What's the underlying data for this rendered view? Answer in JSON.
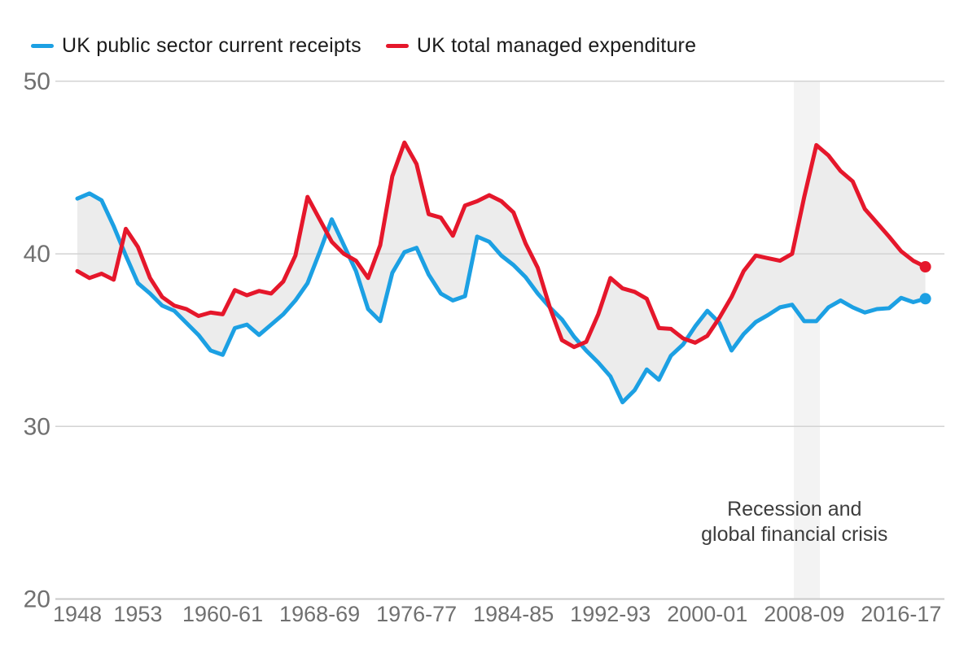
{
  "legend": {
    "items": [
      {
        "label": "UK public sector current receipts",
        "color": "#1ca0e3"
      },
      {
        "label": "UK total managed expenditure",
        "color": "#e5172b"
      }
    ]
  },
  "chart_data": {
    "type": "line",
    "title": "",
    "xlabel": "",
    "ylabel": "",
    "ylim": [
      20,
      50
    ],
    "y_gridlines": [
      20,
      30,
      40,
      50
    ],
    "y_tick_labels": [
      "20",
      "30",
      "40",
      "50"
    ],
    "grid": "horizontal",
    "legend_position": "top-left",
    "categories": [
      "1948",
      "1949",
      "1950",
      "1951",
      "1952",
      "1953",
      "1954",
      "1955",
      "1956-57",
      "1957-58",
      "1958-59",
      "1959-60",
      "1960-61",
      "1961-62",
      "1962-63",
      "1963-64",
      "1964-65",
      "1965-66",
      "1966-67",
      "1967-68",
      "1968-69",
      "1969-70",
      "1970-71",
      "1971-72",
      "1972-73",
      "1973-74",
      "1974-75",
      "1975-76",
      "1976-77",
      "1977-78",
      "1978-79",
      "1979-80",
      "1980-81",
      "1981-82",
      "1982-83",
      "1983-84",
      "1984-85",
      "1985-86",
      "1986-87",
      "1987-88",
      "1988-89",
      "1989-90",
      "1990-91",
      "1991-92",
      "1992-93",
      "1993-94",
      "1994-95",
      "1995-96",
      "1996-97",
      "1997-98",
      "1998-99",
      "1999-00",
      "2000-01",
      "2001-02",
      "2002-03",
      "2003-04",
      "2004-05",
      "2005-06",
      "2006-07",
      "2007-08",
      "2008-09",
      "2009-10",
      "2010-11",
      "2011-12",
      "2012-13",
      "2013-14",
      "2014-15",
      "2015-16",
      "2016-17",
      "2017-18",
      "2018-19"
    ],
    "x_ticks": [
      {
        "index": 0,
        "label": "1948"
      },
      {
        "index": 5,
        "label": "1953"
      },
      {
        "index": 12,
        "label": "1960-61"
      },
      {
        "index": 20,
        "label": "1968-69"
      },
      {
        "index": 28,
        "label": "1976-77"
      },
      {
        "index": 36,
        "label": "1984-85"
      },
      {
        "index": 44,
        "label": "1992-93"
      },
      {
        "index": 52,
        "label": "2000-01"
      },
      {
        "index": 60,
        "label": "2008-09"
      },
      {
        "index": 68,
        "label": "2016-17"
      }
    ],
    "series": [
      {
        "name": "UK public sector current receipts",
        "color": "#1ca0e3",
        "values": [
          43.2,
          43.5,
          43.1,
          41.6,
          39.9,
          38.3,
          37.7,
          37.0,
          36.7,
          36.0,
          35.3,
          34.4,
          34.15,
          35.7,
          35.9,
          35.3,
          35.9,
          36.5,
          37.3,
          38.3,
          40.1,
          42.0,
          40.5,
          39.0,
          36.8,
          36.1,
          38.9,
          40.1,
          40.35,
          38.8,
          37.7,
          37.3,
          37.55,
          41.0,
          40.7,
          39.9,
          39.35,
          38.65,
          37.7,
          36.9,
          36.2,
          35.2,
          34.4,
          33.7,
          32.9,
          31.4,
          32.1,
          33.3,
          32.7,
          34.1,
          34.75,
          35.8,
          36.7,
          36.0,
          34.4,
          35.35,
          36.05,
          36.45,
          36.9,
          37.05,
          36.1,
          36.1,
          36.9,
          37.3,
          36.9,
          36.6,
          36.8,
          36.85,
          37.45,
          37.2,
          37.4
        ]
      },
      {
        "name": "UK total managed expenditure",
        "color": "#e5172b",
        "values": [
          39.0,
          38.6,
          38.85,
          38.5,
          41.45,
          40.4,
          38.6,
          37.5,
          37.0,
          36.8,
          36.4,
          36.6,
          36.5,
          37.9,
          37.6,
          37.85,
          37.7,
          38.4,
          39.9,
          43.3,
          42.0,
          40.7,
          40.0,
          39.6,
          38.6,
          40.5,
          44.5,
          46.45,
          45.2,
          42.3,
          42.1,
          41.05,
          42.8,
          43.05,
          43.4,
          43.05,
          42.4,
          40.6,
          39.2,
          36.9,
          35.0,
          34.6,
          34.9,
          36.5,
          38.6,
          38.0,
          37.8,
          37.4,
          35.7,
          35.65,
          35.1,
          34.85,
          35.25,
          36.3,
          37.5,
          39.0,
          39.9,
          39.75,
          39.6,
          40.0,
          43.3,
          46.3,
          45.7,
          44.8,
          44.2,
          42.6,
          41.8,
          41.0,
          40.15,
          39.6,
          39.25
        ]
      }
    ],
    "fill_between_color": "#ececec",
    "recession_band": {
      "from_index": 59.15,
      "to_index": 61.3,
      "color": "#f3f3f3"
    },
    "annotation": {
      "lines": [
        "Recession and",
        "global financial crisis"
      ],
      "anchor_index": 60.2,
      "color": "#3d3d3d"
    },
    "axis_text_color": "#707070",
    "gridline_color": "#d3d3d3",
    "baseline_color": "#c9c9c9"
  }
}
